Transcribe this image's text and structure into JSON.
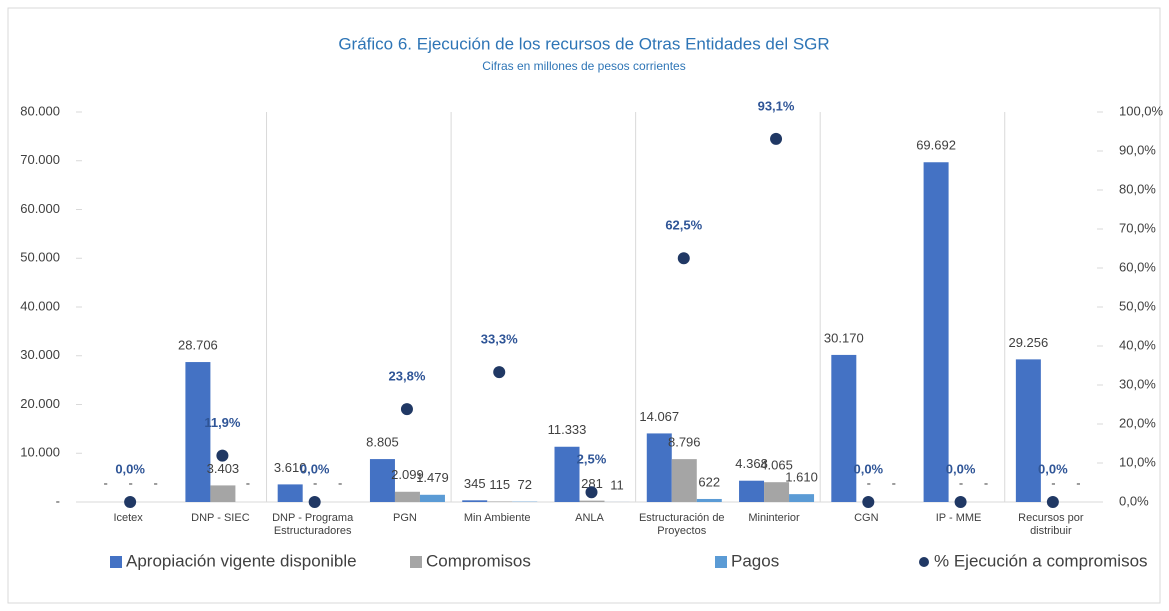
{
  "chart_data": {
    "type": "bar",
    "title": "Gráfico 6. Ejecución de los recursos de Otras Entidades del SGR",
    "subtitle": "Cifras en millones de pesos corrientes",
    "categories": [
      "Icetex",
      "DNP -  SIEC",
      "DNP - Programa Estructuradores",
      "PGN",
      "Min Ambiente",
      "ANLA",
      "Estructuración de Proyectos",
      "Mininterior",
      "CGN",
      "IP - MME",
      "Recursos por distribuir"
    ],
    "series": [
      {
        "name": "Apropiación vigente disponible",
        "color": "#4472c4",
        "values": [
          0,
          28706,
          3610,
          8805,
          345,
          11333,
          14067,
          4368,
          30170,
          69692,
          29256
        ],
        "value_labels": [
          "-",
          "28.706",
          "3.610",
          "8.805",
          "345",
          "11.333",
          "14.067",
          "4.368",
          "30.170",
          "69.692",
          "29.256"
        ]
      },
      {
        "name": "Compromisos",
        "color": "#a5a5a5",
        "values": [
          0,
          3403,
          0,
          2099,
          115,
          281,
          8796,
          4065,
          0,
          0,
          0
        ],
        "value_labels": [
          "-",
          "3.403",
          "-",
          "2.099",
          "115",
          "281",
          "8.796",
          "4.065",
          "-",
          "-",
          "-"
        ]
      },
      {
        "name": "Pagos",
        "color": "#5b9bd5",
        "values": [
          0,
          0,
          0,
          1479,
          72,
          11,
          622,
          1610,
          0,
          0,
          0
        ],
        "value_labels": [
          "-",
          "-",
          "-",
          "1.479",
          "72",
          "11",
          "622",
          "1.610",
          "-",
          "-",
          "-"
        ]
      },
      {
        "name": "% Ejecución a compromisos",
        "color": "#203864",
        "axis": "y2",
        "values": [
          0,
          11.9,
          0,
          23.8,
          33.3,
          2.5,
          62.5,
          93.1,
          0,
          0,
          0
        ],
        "value_labels": [
          "0,0%",
          "11,9%",
          "0,0%",
          "23,8%",
          "33,3%",
          "2,5%",
          "62,5%",
          "93,1%",
          "0,0%",
          "0,0%",
          "0,0%"
        ]
      }
    ],
    "ylim": [
      0,
      80000
    ],
    "yticks": [
      {
        "value": 0,
        "label": "-"
      },
      {
        "value": 10000,
        "label": "10.000"
      },
      {
        "value": 20000,
        "label": "20.000"
      },
      {
        "value": 30000,
        "label": "30.000"
      },
      {
        "value": 40000,
        "label": "40.000"
      },
      {
        "value": 50000,
        "label": "50.000"
      },
      {
        "value": 60000,
        "label": "60.000"
      },
      {
        "value": 70000,
        "label": "70.000"
      },
      {
        "value": 80000,
        "label": "80.000"
      }
    ],
    "y2lim": [
      0,
      100
    ],
    "y2ticks": [
      {
        "value": 0,
        "label": "0,0%"
      },
      {
        "value": 10,
        "label": "10,0%"
      },
      {
        "value": 20,
        "label": "20,0%"
      },
      {
        "value": 30,
        "label": "30,0%"
      },
      {
        "value": 40,
        "label": "40,0%"
      },
      {
        "value": 50,
        "label": "50,0%"
      },
      {
        "value": 60,
        "label": "60,0%"
      },
      {
        "value": 70,
        "label": "70,0%"
      },
      {
        "value": 80,
        "label": "80,0%"
      },
      {
        "value": 90,
        "label": "90,0%"
      },
      {
        "value": 100,
        "label": "100,0%"
      }
    ],
    "legend": "bottom"
  }
}
